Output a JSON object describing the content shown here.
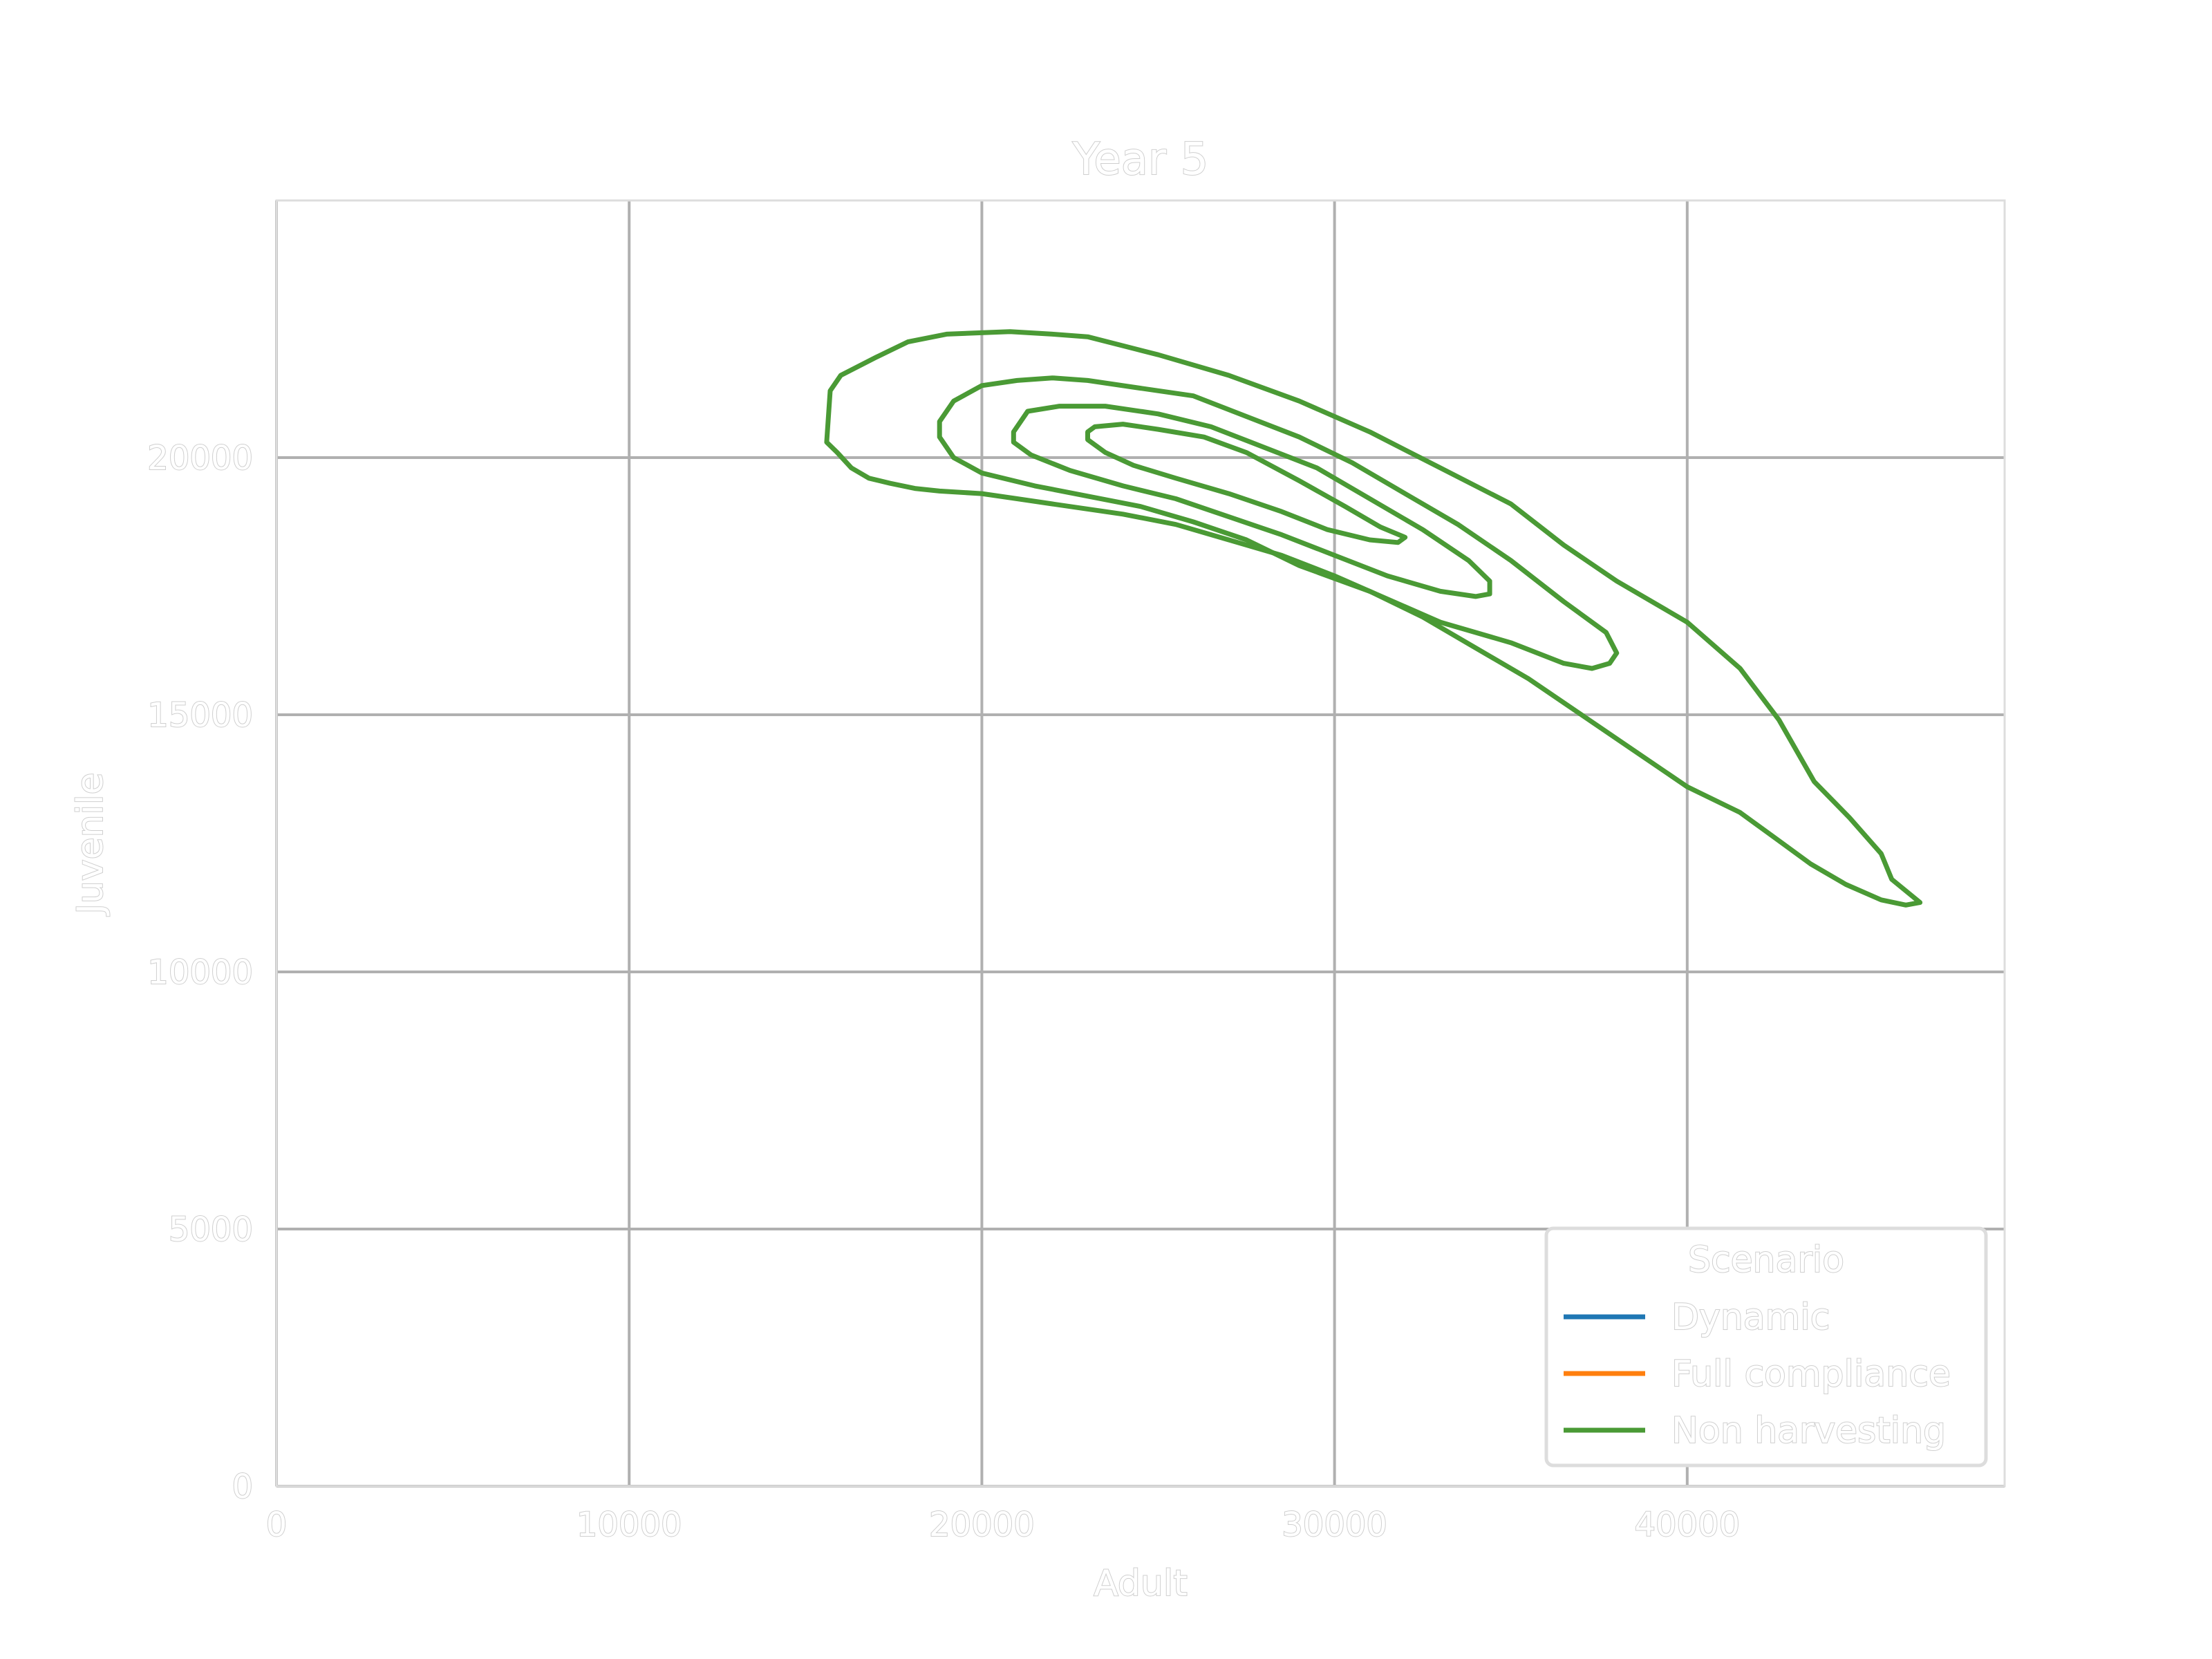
{
  "chart_data": {
    "type": "line",
    "subtype": "kde-contour",
    "title": "Year 5",
    "xlabel": "Adult",
    "ylabel": "Juvenile",
    "xlim": [
      0,
      49000
    ],
    "ylim": [
      0,
      25000
    ],
    "x_ticks": [
      0,
      10000,
      20000,
      30000,
      40000
    ],
    "y_ticks": [
      0,
      5000,
      10000,
      15000,
      20000
    ],
    "grid": true,
    "legend": {
      "title": "Scenario",
      "placement": "lower-right",
      "entries": [
        {
          "label": "Dynamic",
          "color": "#1f77b4"
        },
        {
          "label": "Full compliance",
          "color": "#ff7f0e"
        },
        {
          "label": "Non harvesting",
          "color": "#4a9a35"
        }
      ]
    },
    "series": [
      {
        "name": "Non harvesting",
        "color": "#4a9a35",
        "contours": [
          [
            [
              15600,
              20300
            ],
            [
              15700,
              21300
            ],
            [
              16000,
              21600
            ],
            [
              17000,
              21950
            ],
            [
              17900,
              22250
            ],
            [
              19000,
              22400
            ],
            [
              20800,
              22450
            ],
            [
              22000,
              22400
            ],
            [
              23000,
              22350
            ],
            [
              25000,
              22000
            ],
            [
              27000,
              21600
            ],
            [
              29000,
              21100
            ],
            [
              31000,
              20500
            ],
            [
              33000,
              19800
            ],
            [
              35000,
              19100
            ],
            [
              36500,
              18300
            ],
            [
              38000,
              17600
            ],
            [
              40000,
              16800
            ],
            [
              41500,
              15900
            ],
            [
              42600,
              14900
            ],
            [
              43600,
              13700
            ],
            [
              44600,
              13000
            ],
            [
              45500,
              12300
            ],
            [
              45800,
              11800
            ],
            [
              46600,
              11350
            ],
            [
              46200,
              11300
            ],
            [
              45500,
              11400
            ],
            [
              44500,
              11700
            ],
            [
              43500,
              12100
            ],
            [
              42500,
              12600
            ],
            [
              41500,
              13100
            ],
            [
              40000,
              13600
            ],
            [
              38500,
              14300
            ],
            [
              37000,
              15000
            ],
            [
              35500,
              15700
            ],
            [
              34000,
              16300
            ],
            [
              32500,
              16900
            ],
            [
              31000,
              17400
            ],
            [
              30000,
              17700
            ],
            [
              28500,
              18100
            ],
            [
              27000,
              18400
            ],
            [
              25500,
              18700
            ],
            [
              24000,
              18900
            ],
            [
              22000,
              19100
            ],
            [
              21000,
              19200
            ],
            [
              20000,
              19300
            ],
            [
              18800,
              19350
            ],
            [
              18100,
              19400
            ],
            [
              17400,
              19500
            ],
            [
              16800,
              19600
            ],
            [
              16300,
              19800
            ],
            [
              15900,
              20100
            ],
            [
              15600,
              20300
            ]
          ],
          [
            [
              18800,
              20700
            ],
            [
              19200,
              21100
            ],
            [
              20000,
              21400
            ],
            [
              21000,
              21500
            ],
            [
              22000,
              21550
            ],
            [
              23000,
              21500
            ],
            [
              24500,
              21350
            ],
            [
              26000,
              21200
            ],
            [
              27500,
              20800
            ],
            [
              29000,
              20400
            ],
            [
              30500,
              19900
            ],
            [
              32000,
              19300
            ],
            [
              33500,
              18700
            ],
            [
              35000,
              18000
            ],
            [
              36500,
              17200
            ],
            [
              37700,
              16600
            ],
            [
              38000,
              16200
            ],
            [
              37800,
              16000
            ],
            [
              37300,
              15900
            ],
            [
              36500,
              16000
            ],
            [
              35000,
              16400
            ],
            [
              33000,
              16800
            ],
            [
              31000,
              17400
            ],
            [
              29000,
              17900
            ],
            [
              27500,
              18400
            ],
            [
              26000,
              18750
            ],
            [
              24500,
              19050
            ],
            [
              23000,
              19250
            ],
            [
              21500,
              19450
            ],
            [
              20000,
              19700
            ],
            [
              19200,
              20000
            ],
            [
              18800,
              20400
            ],
            [
              18800,
              20700
            ]
          ],
          [
            [
              20900,
              20500
            ],
            [
              21300,
              20900
            ],
            [
              22200,
              21000
            ],
            [
              23500,
              21000
            ],
            [
              25000,
              20850
            ],
            [
              26500,
              20600
            ],
            [
              28000,
              20200
            ],
            [
              29500,
              19800
            ],
            [
              31000,
              19200
            ],
            [
              32500,
              18600
            ],
            [
              33800,
              18000
            ],
            [
              34400,
              17600
            ],
            [
              34400,
              17350
            ],
            [
              34000,
              17300
            ],
            [
              33000,
              17400
            ],
            [
              31500,
              17700
            ],
            [
              30000,
              18100
            ],
            [
              28500,
              18500
            ],
            [
              27000,
              18850
            ],
            [
              25500,
              19200
            ],
            [
              24000,
              19450
            ],
            [
              22500,
              19750
            ],
            [
              21400,
              20050
            ],
            [
              20900,
              20300
            ],
            [
              20900,
              20500
            ]
          ],
          [
            [
              23000,
              20500
            ],
            [
              23200,
              20600
            ],
            [
              24000,
              20650
            ],
            [
              25000,
              20550
            ],
            [
              26300,
              20400
            ],
            [
              27500,
              20100
            ],
            [
              29000,
              19550
            ],
            [
              30300,
              19050
            ],
            [
              31300,
              18650
            ],
            [
              32000,
              18450
            ],
            [
              31800,
              18350
            ],
            [
              31000,
              18400
            ],
            [
              29800,
              18600
            ],
            [
              28500,
              18950
            ],
            [
              27000,
              19300
            ],
            [
              25500,
              19600
            ],
            [
              24300,
              19850
            ],
            [
              23500,
              20100
            ],
            [
              23000,
              20350
            ],
            [
              23000,
              20500
            ]
          ]
        ]
      }
    ]
  }
}
